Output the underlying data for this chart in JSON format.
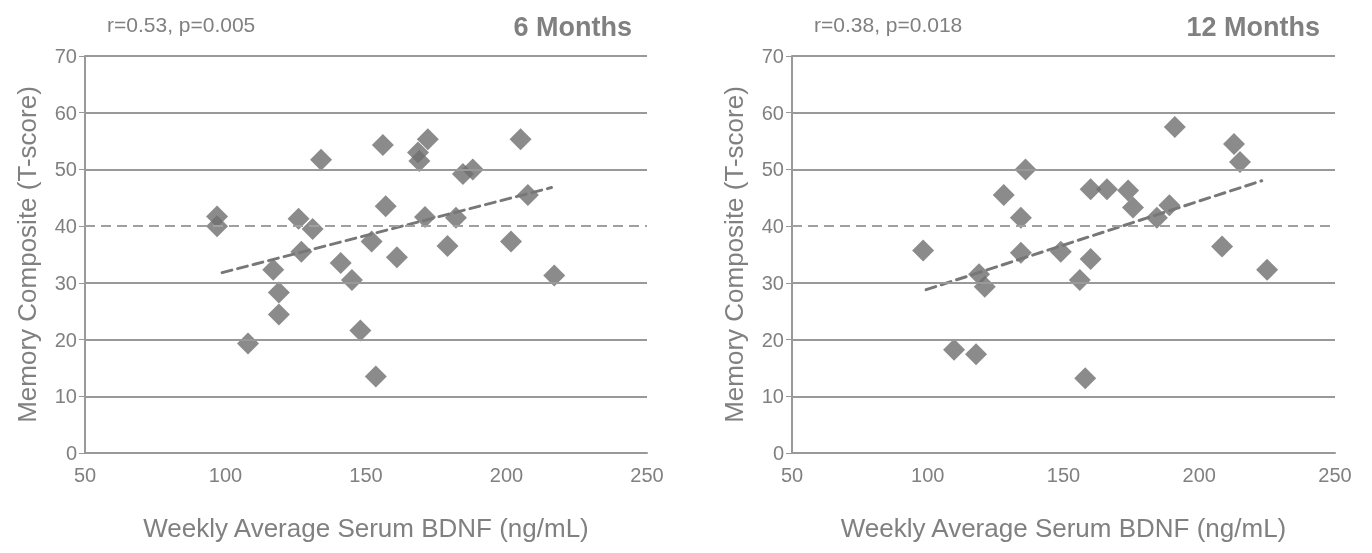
{
  "chart_data": [
    {
      "type": "scatter",
      "title": "6 Months",
      "annotations": [
        "r=0.53, p=0.005"
      ],
      "xlabel": "Weekly Average Serum BDNF (ng/mL)",
      "ylabel": "Memory Composite (T-score)",
      "xlim": [
        50,
        250
      ],
      "xticks": [
        50,
        100,
        150,
        200,
        250
      ],
      "ylim": [
        0,
        70
      ],
      "yticks": [
        0,
        10,
        20,
        30,
        40,
        50,
        60,
        70
      ],
      "grid": "y",
      "series": [
        {
          "marker": "diamond",
          "color": "#6e6e6e",
          "x": [
            97,
            97,
            108,
            117,
            119,
            119,
            126,
            127,
            131,
            134,
            141,
            145,
            148,
            152,
            153.5,
            156,
            157,
            161,
            168.5,
            169,
            172,
            171,
            179,
            182,
            184.5,
            188,
            201.6,
            205,
            207.6,
            217
          ],
          "values": [
            41.7,
            40,
            19.3,
            32.3,
            28.3,
            24.4,
            41.3,
            35.5,
            39.5,
            51.7,
            33.5,
            30.5,
            21.6,
            37.3,
            13.5,
            54.3,
            43.5,
            34.5,
            53,
            51.5,
            55.3,
            41.6,
            36.5,
            41.5,
            49.2,
            50,
            37.3,
            55.3,
            45.5,
            31.3
          ]
        },
        {
          "type": "line",
          "marker": "none",
          "color": "#777777",
          "line_style": "dashed",
          "x": [
            98.8,
            216
          ],
          "values": [
            31.8,
            46.8
          ]
        }
      ],
      "ref_lines": [
        {
          "axis": "y",
          "value": 40,
          "color": "#a0a0a0",
          "line_style": "dashed"
        }
      ]
    },
    {
      "type": "scatter",
      "title": "12 Months",
      "annotations": [
        "r=0.38, p=0.018"
      ],
      "xlabel": "Weekly Average Serum BDNF (ng/mL)",
      "ylabel": "Memory Composite (T-score)",
      "xlim": [
        50,
        250
      ],
      "xticks": [
        50,
        100,
        150,
        200,
        250
      ],
      "ylim": [
        0,
        70
      ],
      "yticks": [
        0,
        10,
        20,
        30,
        40,
        50,
        60,
        70
      ],
      "grid": "y",
      "series": [
        {
          "marker": "diamond",
          "color": "#6e6e6e",
          "x": [
            98.3,
            109.7,
            117.8,
            118.9,
            121,
            128,
            134.3,
            134.3,
            136,
            149,
            156,
            158,
            160,
            160,
            166,
            173.8,
            175.6,
            184.4,
            189,
            191,
            208.4,
            212.8,
            215,
            225
          ],
          "values": [
            35.7,
            18.2,
            17.4,
            31.5,
            29.3,
            45.5,
            41.5,
            35.3,
            50,
            35.5,
            30.5,
            13.2,
            34.2,
            46.5,
            46.5,
            46.3,
            43.3,
            41.5,
            43.7,
            57.5,
            36.4,
            54.5,
            51.3,
            32.3
          ]
        },
        {
          "type": "line",
          "marker": "none",
          "color": "#777777",
          "line_style": "dashed",
          "x": [
            99.4,
            223
          ],
          "values": [
            28.8,
            48
          ]
        }
      ],
      "ref_lines": [
        {
          "axis": "y",
          "value": 40,
          "color": "#a0a0a0",
          "line_style": "dashed"
        }
      ]
    }
  ]
}
